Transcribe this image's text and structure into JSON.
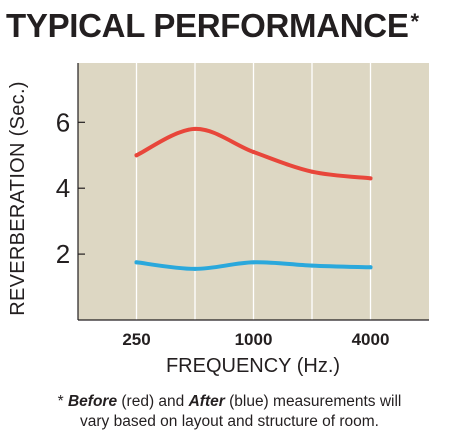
{
  "title": "TYPICAL PERFORMANCE",
  "title_marker": "*",
  "footnote": {
    "marker": "*",
    "before_label": "Before",
    "before_color_word": "(red) and",
    "after_label": "After",
    "after_color_word": "(blue) measurements will",
    "line2": "vary based on layout and structure of room."
  },
  "chart_data": {
    "type": "line",
    "xlabel": "FREQUENCY (Hz.)",
    "ylabel": "REVERBERATION (Sec.)",
    "x_tick_labels": [
      "250",
      "1000",
      "4000"
    ],
    "x_gridlines": [
      250,
      500,
      1000,
      2000,
      4000
    ],
    "y_ticks": [
      2,
      4,
      6
    ],
    "xlim": [
      125,
      8000
    ],
    "ylim": [
      0,
      7.8
    ],
    "x_scale": "log",
    "grid": true,
    "background_color": "#ddd7c3",
    "series": [
      {
        "color": "#e8463a",
        "x": [
          250,
          500,
          1000,
          2000,
          4000
        ],
        "values": [
          5.0,
          5.8,
          5.1,
          4.5,
          4.3
        ]
      },
      {
        "color": "#2aa8dc",
        "x": [
          250,
          500,
          1000,
          2000,
          4000
        ],
        "values": [
          1.75,
          1.55,
          1.75,
          1.65,
          1.6
        ]
      }
    ]
  }
}
